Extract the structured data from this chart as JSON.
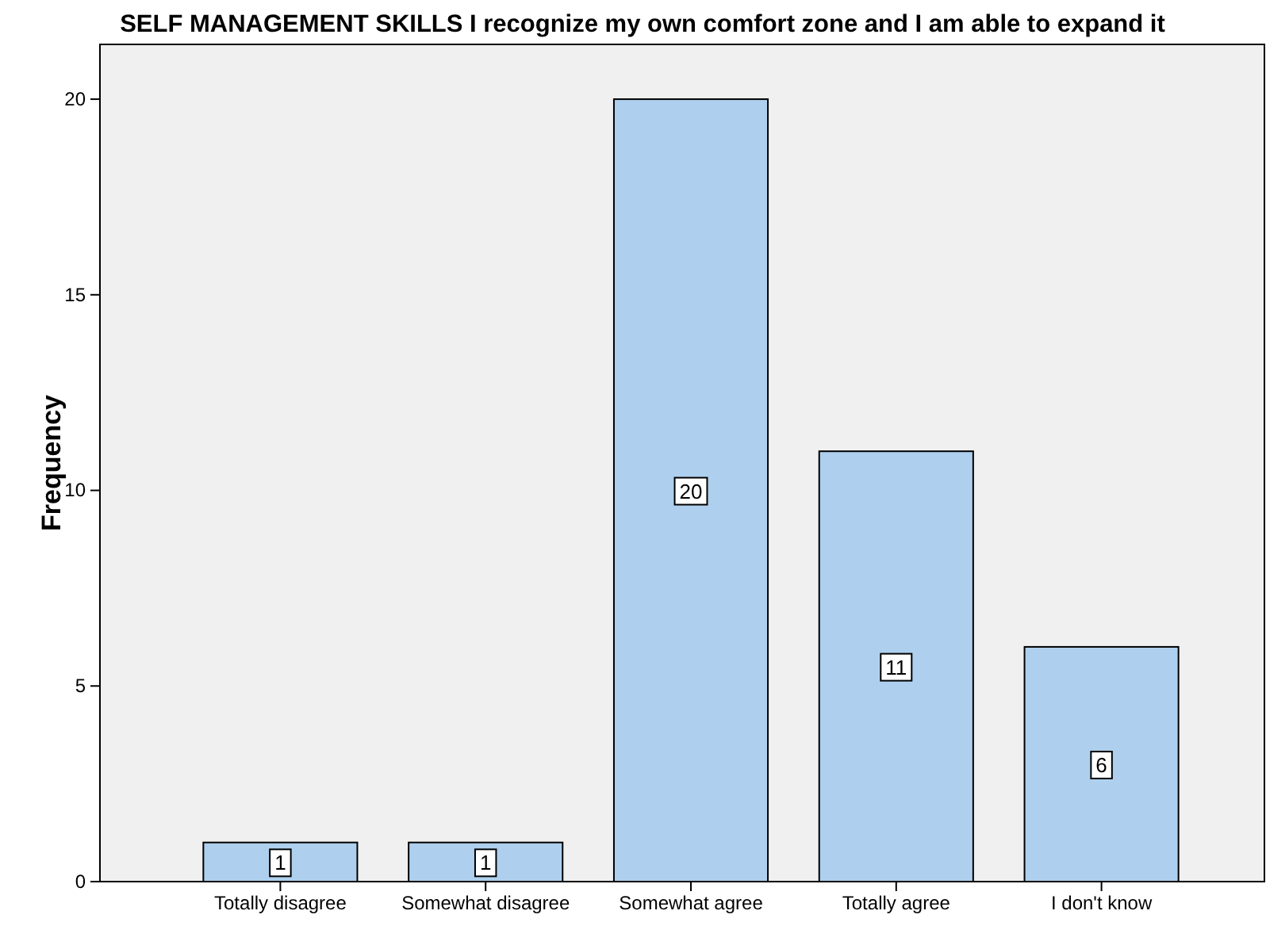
{
  "chart_data": {
    "type": "bar",
    "title": "SELF MANAGEMENT SKILLS  I recognize my own comfort zone and I am able to expand it",
    "categories": [
      "Totally disagree",
      "Somewhat disagree",
      "Somewhat agree",
      "Totally agree",
      "I don't know"
    ],
    "values": [
      1,
      1,
      20,
      11,
      6
    ],
    "color": "#aed0ee",
    "ylabel": "Frequency",
    "ylim": [
      0,
      21.4
    ],
    "yticks": [
      0,
      5,
      10,
      15,
      20
    ],
    "grid": false,
    "data_labels": true
  }
}
